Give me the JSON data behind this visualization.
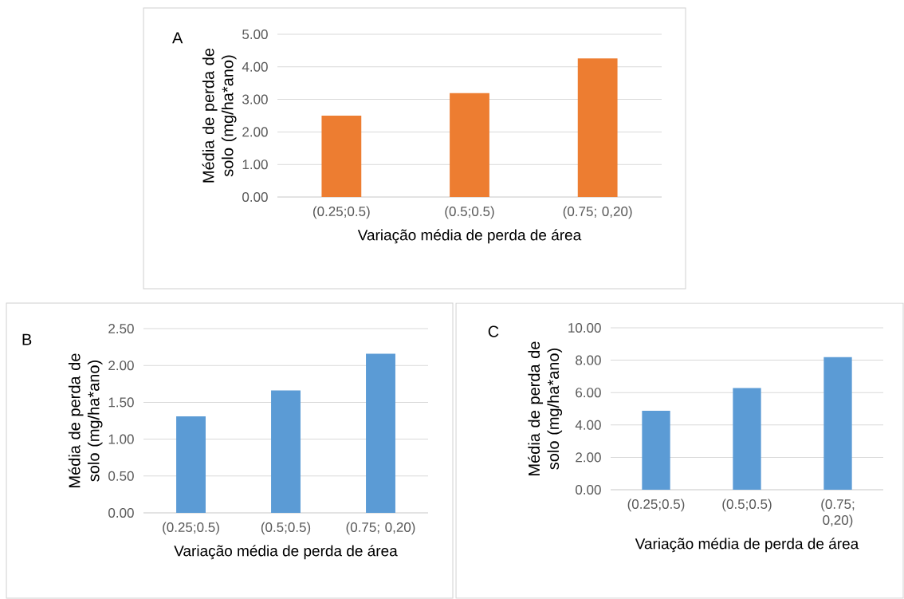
{
  "chart_data": [
    {
      "type": "bar",
      "title": "A",
      "categories": [
        "(0.25;0.5)",
        "(0.5;0.5)",
        "(0.75; 0,20)"
      ],
      "values": [
        2.5,
        3.19,
        4.26
      ],
      "color": "#ed7d31",
      "ylim": [
        0,
        5
      ],
      "yticks": [
        {
          "value": 0,
          "label": "0.00"
        },
        {
          "value": 1,
          "label": "1.00"
        },
        {
          "value": 2,
          "label": "2.00"
        },
        {
          "value": 3,
          "label": "3.00"
        },
        {
          "value": 4,
          "label": "4.00"
        },
        {
          "value": 5,
          "label": "5.00"
        }
      ],
      "grid": "y",
      "xlabel": "Variação média de perda de área",
      "ylabel": "Média de perda de solo (mg/ha*ano)"
    },
    {
      "type": "bar",
      "title": "B",
      "categories": [
        "(0.25;0.5)",
        "(0.5;0.5)",
        "(0.75; 0,20)"
      ],
      "values": [
        1.31,
        1.66,
        2.16
      ],
      "color": "#5b9bd5",
      "ylim": [
        0,
        2.5
      ],
      "yticks": [
        {
          "value": 0,
          "label": "0.00"
        },
        {
          "value": 0.5,
          "label": "0.50"
        },
        {
          "value": 1,
          "label": "1.00"
        },
        {
          "value": 1.5,
          "label": "1.50"
        },
        {
          "value": 2,
          "label": "2.00"
        },
        {
          "value": 2.5,
          "label": "2.50"
        }
      ],
      "grid": "y",
      "xlabel": "Variação média de perda de área",
      "ylabel": "Média de perda de solo (mg/ha*ano)"
    },
    {
      "type": "bar",
      "title": "C",
      "categories": [
        "(0.25;0.5)",
        "(0.5;0.5)",
        "(0.75; 0,20)"
      ],
      "values": [
        4.88,
        6.28,
        8.19
      ],
      "color": "#5b9bd5",
      "ylim": [
        0,
        10
      ],
      "yticks": [
        {
          "value": 0,
          "label": "0.00"
        },
        {
          "value": 2,
          "label": "2.00"
        },
        {
          "value": 4,
          "label": "4.00"
        },
        {
          "value": 6,
          "label": "6.00"
        },
        {
          "value": 8,
          "label": "8.00"
        },
        {
          "value": 10,
          "label": "10.00"
        }
      ],
      "grid": "y",
      "xlabel": "Variação média de perda de área",
      "ylabel": "Média de perda de solo (mg/ha*ano)"
    }
  ]
}
